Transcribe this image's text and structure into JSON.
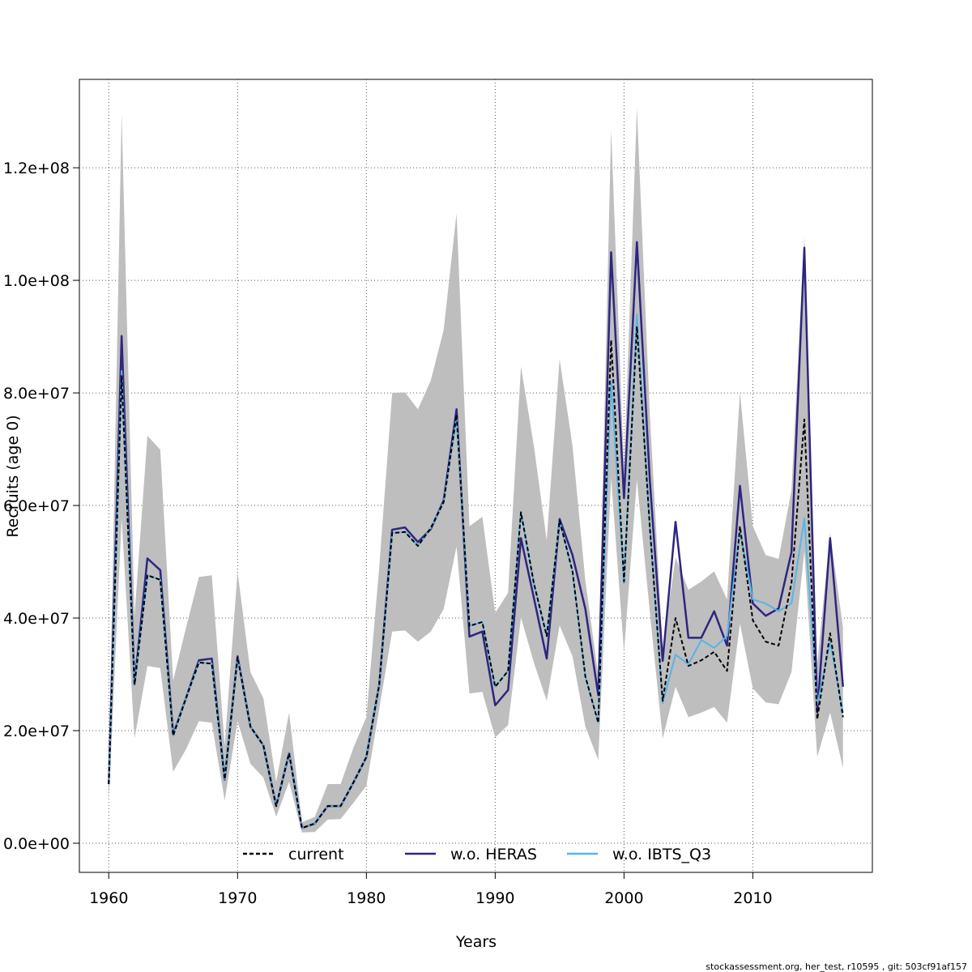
{
  "chart_data": {
    "type": "line",
    "x_label": "Years",
    "y_label": "Recruits (age 0)",
    "footer": "stockassessment.org, her_test, r10595 , git: 503cf91af157",
    "x": [
      1960,
      1961,
      1962,
      1963,
      1964,
      1965,
      1966,
      1967,
      1968,
      1969,
      1970,
      1971,
      1972,
      1973,
      1974,
      1975,
      1976,
      1977,
      1978,
      1979,
      1980,
      1981,
      1982,
      1983,
      1984,
      1985,
      1986,
      1987,
      1988,
      1989,
      1990,
      1991,
      1992,
      1993,
      1994,
      1995,
      1996,
      1997,
      1998,
      1999,
      2000,
      2001,
      2002,
      2003,
      2004,
      2005,
      2006,
      2007,
      2008,
      2009,
      2010,
      2011,
      2012,
      2013,
      2014,
      2015,
      2016,
      2017
    ],
    "xlim": [
      1957.72,
      2019.28
    ],
    "xticks": [
      1960,
      1970,
      1980,
      1990,
      2000,
      2010
    ],
    "ylim": [
      -5180000,
      135700000
    ],
    "yticks": [
      {
        "value": 0,
        "label": "0.0e+00"
      },
      {
        "value": 20000000,
        "label": "2.0e+07"
      },
      {
        "value": 40000000,
        "label": "4.0e+07"
      },
      {
        "value": 60000000,
        "label": "6.0e+07"
      },
      {
        "value": 80000000,
        "label": "8.0e+07"
      },
      {
        "value": 100000000,
        "label": "1.0e+08"
      },
      {
        "value": 120000000,
        "label": "1.2e+08"
      }
    ],
    "grid": true,
    "legend_position": "bottom",
    "band": {
      "color": "#bebebe",
      "upper": [
        12400000,
        129600000,
        40400000,
        72400000,
        69900000,
        28900000,
        38300000,
        47300000,
        47600000,
        17400000,
        48200000,
        30400000,
        25800000,
        10900000,
        23200000,
        3700000,
        4700000,
        10500000,
        10500000,
        17000000,
        22400000,
        49100000,
        80000000,
        80100000,
        77100000,
        82200000,
        91200000,
        111900000,
        56300000,
        58000000,
        40900000,
        44500000,
        84700000,
        70600000,
        53800000,
        86000000,
        70600000,
        46600000,
        29800000,
        126800000,
        66300000,
        130600000,
        76400000,
        34700000,
        50800000,
        45000000,
        46500000,
        48300000,
        43300000,
        80100000,
        56300000,
        51200000,
        50500000,
        62700000,
        107800000,
        31800000,
        55100000,
        38300000
      ],
      "lower": [
        7300000,
        57700000,
        18600000,
        31500000,
        31100000,
        12700000,
        16700000,
        21700000,
        21400000,
        7600000,
        21700000,
        14100000,
        11700000,
        4700000,
        10900000,
        1900000,
        2000000,
        4200000,
        4300000,
        7200000,
        10200000,
        23900000,
        37600000,
        37800000,
        35800000,
        37600000,
        41600000,
        52700000,
        26600000,
        26900000,
        18800000,
        21000000,
        40100000,
        32100000,
        25300000,
        38700000,
        33200000,
        20700000,
        14800000,
        64900000,
        34000000,
        64600000,
        41200000,
        18600000,
        27800000,
        22400000,
        23200000,
        24200000,
        21400000,
        39000000,
        27500000,
        25000000,
        24700000,
        30400000,
        51900000,
        15300000,
        23200000,
        13400000
      ]
    },
    "series": [
      {
        "name": "current",
        "color": "#000000",
        "values": [
          10500000,
          83000000,
          28200000,
          47600000,
          46800000,
          19100000,
          25800000,
          32100000,
          31900000,
          11400000,
          33000000,
          20700000,
          17400000,
          6600000,
          16000000,
          2700000,
          3500000,
          6600000,
          6600000,
          10800000,
          15300000,
          28200000,
          55100000,
          55300000,
          52800000,
          56000000,
          60600000,
          76100000,
          38600000,
          39300000,
          27800000,
          30600000,
          58800000,
          46200000,
          36800000,
          57300000,
          48300000,
          29600000,
          21400000,
          89400000,
          46500000,
          91800000,
          56300000,
          25300000,
          40000000,
          31500000,
          32500000,
          34000000,
          30600000,
          56300000,
          39600000,
          35800000,
          35100000,
          46200000,
          75300000,
          22000000,
          37300000,
          22400000
        ]
      },
      {
        "name": "w.o. HERAS",
        "color": "#2e2580",
        "values": [
          10500000,
          90100000,
          28200000,
          50600000,
          48500000,
          19300000,
          25800000,
          32500000,
          32800000,
          11300000,
          33200000,
          20700000,
          17400000,
          6600000,
          16000000,
          2700000,
          3500000,
          6600000,
          6600000,
          10800000,
          15300000,
          28200000,
          55700000,
          56100000,
          53500000,
          55800000,
          60900000,
          77100000,
          36700000,
          37600000,
          24500000,
          27200000,
          54200000,
          43600000,
          32800000,
          57600000,
          51200000,
          41600000,
          26300000,
          105000000,
          61300000,
          106800000,
          64600000,
          32400000,
          57100000,
          36500000,
          36500000,
          41200000,
          35100000,
          63500000,
          42600000,
          40400000,
          41700000,
          51700000,
          105800000,
          23200000,
          54200000,
          27800000
        ]
      },
      {
        "name": "w.o. IBTS_Q3",
        "color": "#56b4e9",
        "values": [
          10500000,
          83900000,
          28200000,
          47600000,
          46800000,
          19100000,
          25800000,
          32100000,
          31900000,
          11400000,
          33000000,
          20700000,
          17400000,
          6600000,
          16000000,
          2700000,
          3500000,
          6600000,
          6600000,
          10800000,
          15300000,
          28200000,
          55100000,
          55300000,
          52800000,
          56000000,
          60600000,
          75700000,
          38600000,
          39300000,
          27800000,
          30600000,
          58800000,
          46200000,
          36800000,
          57300000,
          48300000,
          29600000,
          21400000,
          82200000,
          46200000,
          94000000,
          56300000,
          24900000,
          33500000,
          31800000,
          36100000,
          34700000,
          36800000,
          55500000,
          43300000,
          42600000,
          41200000,
          42600000,
          57700000,
          24600000,
          35800000,
          23200000
        ]
      }
    ]
  }
}
